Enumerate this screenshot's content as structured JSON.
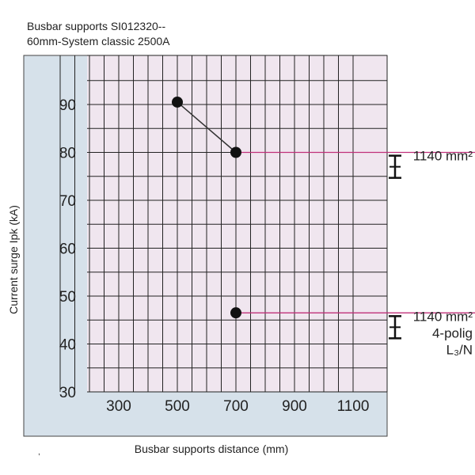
{
  "title_line1": "Busbar supports SI012320--",
  "title_line2": "60mm-System classic 2500A",
  "stray_mark": ",",
  "colors": {
    "panel_bg": "#d6e1ea",
    "plot_bg": "#f0e6ef",
    "grid": "#222222",
    "point": "#111111",
    "series_line": "#333333",
    "ref_line": "#c0307a"
  },
  "chart_data": {
    "type": "scatter",
    "title": "Busbar supports SI012320-- 60mm-System classic 2500A",
    "xlabel": "Busbar supports distance (mm)",
    "ylabel": "Current surge Ipk (kA)",
    "xlim": [
      100,
      1100
    ],
    "ylim": [
      30,
      97
    ],
    "x_ticks": [
      "300",
      "500",
      "700",
      "900",
      "1100"
    ],
    "x_tick_values": [
      300,
      500,
      700,
      900,
      1100
    ],
    "y_ticks": [
      "30",
      "40",
      "50",
      "60",
      "70",
      "80",
      "90"
    ],
    "y_tick_values": [
      30,
      40,
      50,
      60,
      70,
      80,
      90
    ],
    "grid": true,
    "series": [
      {
        "points": [
          {
            "x": 500,
            "y": 90.5
          },
          {
            "x": 700,
            "y": 80
          }
        ],
        "connected": true
      },
      {
        "points": [
          {
            "x": 700,
            "y": 46.5
          }
        ],
        "connected": false
      }
    ],
    "reference_lines": [
      {
        "y": 80,
        "x_from": 700
      },
      {
        "y": 46.5,
        "x_from": 700
      }
    ],
    "annotations": [
      {
        "lines": [
          "1140 mm²"
        ],
        "y": 77
      },
      {
        "lines": [
          "1140 mm²",
          "4-polig",
          "L₃/N"
        ],
        "y": 43.5
      }
    ]
  }
}
